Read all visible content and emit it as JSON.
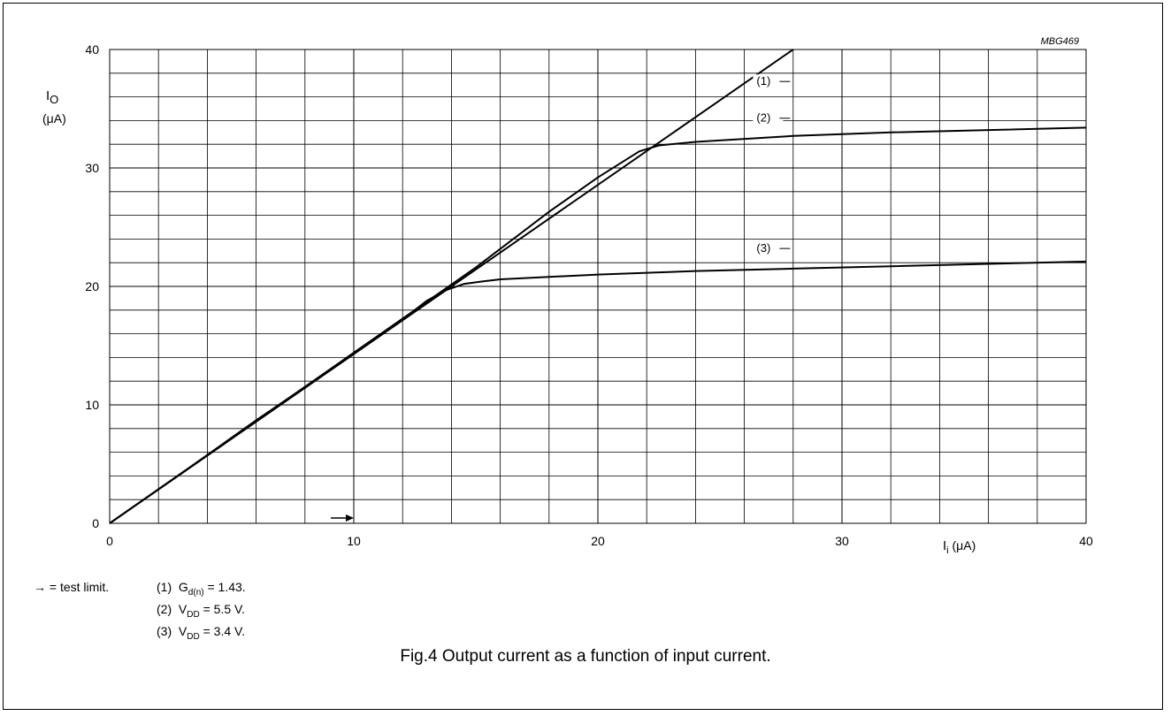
{
  "figure_id": "MBG469",
  "caption": "Fig.4  Output current as a function of input current.",
  "notes": {
    "arrow_symbol": "→",
    "test_limit": "= test limit.",
    "items": [
      {
        "num": "(1)",
        "main": "G",
        "sub": "d(n)",
        "rest": " = 1.43."
      },
      {
        "num": "(2)",
        "main": "V",
        "sub": "DD",
        "rest": " = 5.5 V."
      },
      {
        "num": "(3)",
        "main": "V",
        "sub": "DD",
        "rest": " = 3.4 V."
      }
    ]
  },
  "chart_data": {
    "type": "line",
    "title": "",
    "xlabel": {
      "main": "I",
      "sub": "i",
      "unit": " (μA)"
    },
    "ylabel": {
      "main": "I",
      "sub": "O",
      "unit": "(μA)"
    },
    "xlim": [
      0,
      40
    ],
    "ylim": [
      0,
      40
    ],
    "x_ticks": [
      0,
      10,
      20,
      30,
      40
    ],
    "y_ticks": [
      0,
      10,
      20,
      30,
      40
    ],
    "x_minor_step": 2,
    "y_minor_step": 2,
    "grid": true,
    "test_limit_x": 10,
    "series": [
      {
        "name": "(1)",
        "points": [
          [
            0,
            0
          ],
          [
            28,
            40
          ]
        ]
      },
      {
        "name": "(2)",
        "points": [
          [
            0,
            0
          ],
          [
            5,
            7.2
          ],
          [
            10,
            14.4
          ],
          [
            15,
            21.6
          ],
          [
            18,
            26.3
          ],
          [
            20,
            29.2
          ],
          [
            21,
            30.5
          ],
          [
            21.7,
            31.4
          ],
          [
            22.5,
            31.9
          ],
          [
            24,
            32.2
          ],
          [
            28,
            32.7
          ],
          [
            32,
            33
          ],
          [
            36,
            33.2
          ],
          [
            40,
            33.4
          ]
        ]
      },
      {
        "name": "(3)",
        "points": [
          [
            0,
            0
          ],
          [
            3,
            4.3
          ],
          [
            6,
            8.7
          ],
          [
            9,
            12.9
          ],
          [
            12,
            17.2
          ],
          [
            13,
            18.8
          ],
          [
            13.8,
            19.7
          ],
          [
            14.5,
            20.2
          ],
          [
            15.2,
            20.4
          ],
          [
            16,
            20.6
          ],
          [
            18,
            20.8
          ],
          [
            20,
            21
          ],
          [
            24,
            21.3
          ],
          [
            28,
            21.5
          ],
          [
            32,
            21.7
          ],
          [
            36,
            21.9
          ],
          [
            40,
            22.1
          ]
        ]
      }
    ],
    "series_labels": [
      {
        "text": "(1)",
        "x": 26.5,
        "y": 37
      },
      {
        "text": "(2)",
        "x": 26.5,
        "y": 33.9
      },
      {
        "text": "(3)",
        "x": 26.5,
        "y": 22.9
      }
    ]
  }
}
